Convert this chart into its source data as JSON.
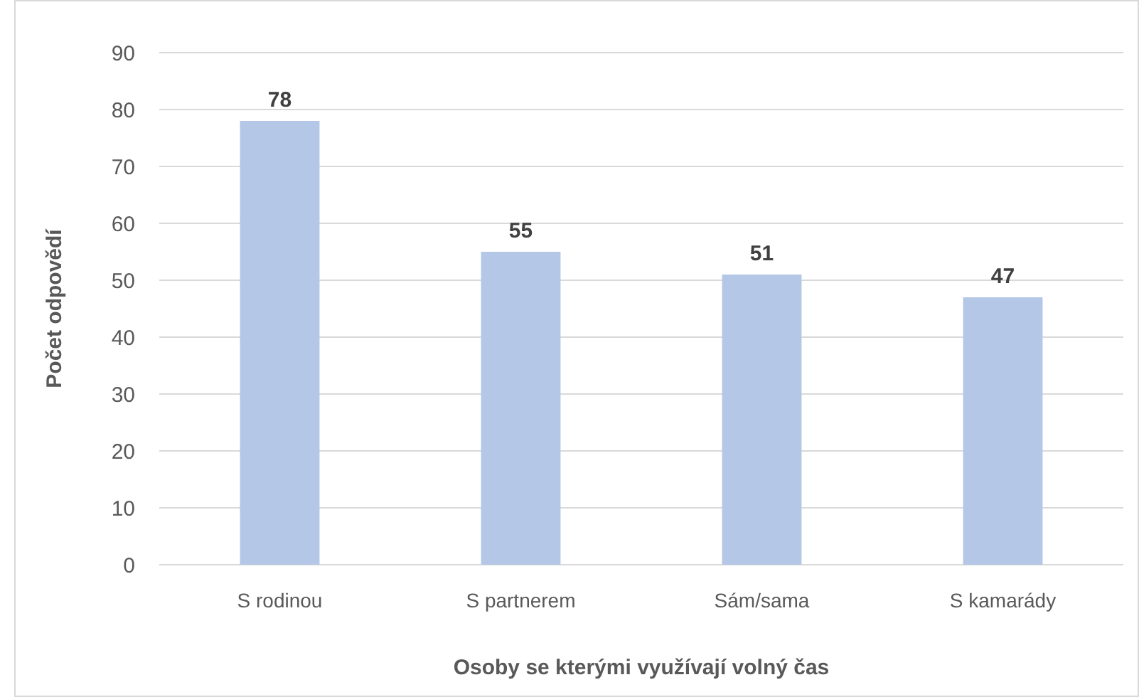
{
  "chart_data": {
    "type": "bar",
    "xlabel": "Osoby se kterými využívají volný čas",
    "ylabel": "Počet odpovědí",
    "categories": [
      "S rodinou",
      "S partnerem",
      "Sám/sama",
      "S kamarády"
    ],
    "values": [
      78,
      55,
      51,
      47
    ],
    "color": "#b4c7e7",
    "ylim": [
      0,
      90
    ],
    "yticks": [
      0,
      10,
      20,
      30,
      40,
      50,
      60,
      70,
      80,
      90
    ],
    "grid": "y",
    "data_labels": true
  }
}
